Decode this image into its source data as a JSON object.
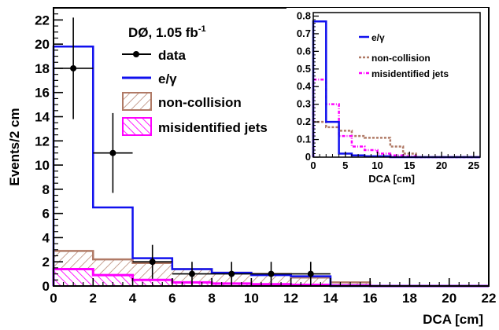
{
  "chart_data": [
    {
      "type": "line",
      "title": "DØ, 1.05 fb",
      "title_sup": "-1",
      "xlabel": "DCA [cm]",
      "ylabel": "Events/2 cm",
      "xlim": [
        0,
        22
      ],
      "ylim": [
        0,
        23
      ],
      "x_ticks": [
        0,
        2,
        4,
        6,
        8,
        10,
        12,
        14,
        16,
        18,
        20,
        22
      ],
      "y_ticks": [
        0,
        2,
        4,
        6,
        8,
        10,
        12,
        14,
        16,
        18,
        20,
        22
      ],
      "bin_edges": [
        0,
        2,
        4,
        6,
        8,
        10,
        12,
        14,
        16,
        18,
        20,
        22
      ],
      "legend_position": "top-left",
      "series": [
        {
          "name": "data",
          "kind": "points",
          "color": "#000000",
          "x": [
            1,
            3,
            5,
            7,
            9,
            11,
            13
          ],
          "y": [
            18,
            11,
            2,
            1,
            1,
            1,
            1
          ],
          "yerr": [
            4.2,
            3.3,
            1.4,
            1.0,
            1.0,
            1.0,
            1.0
          ]
        },
        {
          "name": "e/γ",
          "kind": "step",
          "color": "#1010ee",
          "values": [
            19.8,
            6.5,
            2.3,
            1.4,
            1.1,
            0.9,
            0.8,
            0,
            0,
            0,
            0
          ]
        },
        {
          "name": "non-collision",
          "kind": "hatched",
          "color": "#b07a66",
          "values": [
            2.9,
            2.2,
            1.9,
            1.4,
            1.1,
            1.0,
            0.7,
            0.3,
            0,
            0,
            0
          ]
        },
        {
          "name": "misidentified jets",
          "kind": "hatched",
          "color": "#ff00ff",
          "values": [
            1.4,
            0.9,
            0.5,
            0.3,
            0.2,
            0.15,
            0.1,
            0.05,
            0,
            0,
            0
          ]
        }
      ]
    },
    {
      "type": "line",
      "xlabel": "DCA [cm]",
      "xlim": [
        0,
        26
      ],
      "ylim": [
        0,
        0.82
      ],
      "x_ticks": [
        0,
        5,
        10,
        15,
        20,
        25
      ],
      "y_ticks": [
        0,
        0.1,
        0.2,
        0.3,
        0.4,
        0.5,
        0.6,
        0.7,
        0.8
      ],
      "bin_edges": [
        0,
        2,
        4,
        6,
        8,
        10,
        12,
        14,
        16,
        18,
        20,
        22,
        24,
        26
      ],
      "legend_position": "top-right",
      "series": [
        {
          "name": "e/γ",
          "style": "solid",
          "color": "#1010ee",
          "values": [
            0.77,
            0.2,
            0.02,
            0.01,
            0.005,
            0.005,
            0.0,
            0,
            0,
            0,
            0,
            0,
            0
          ]
        },
        {
          "name": "non-collision",
          "style": "dashed",
          "color": "#b07a66",
          "values": [
            0.2,
            0.17,
            0.15,
            0.12,
            0.11,
            0.11,
            0.06,
            0.02,
            0,
            0,
            0,
            0,
            0
          ]
        },
        {
          "name": "misidentified jets",
          "style": "dashdot",
          "color": "#ff00ff",
          "values": [
            0.44,
            0.3,
            0.12,
            0.06,
            0.04,
            0.02,
            0.01,
            0.005,
            0,
            0,
            0,
            0,
            0
          ]
        }
      ]
    }
  ]
}
